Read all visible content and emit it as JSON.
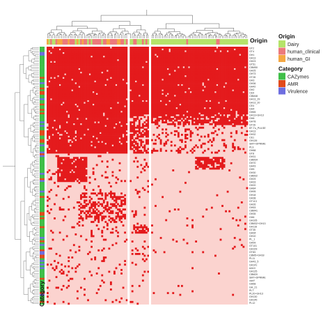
{
  "chart_data": {
    "type": "heatmap",
    "description_note_free": true,
    "annotation_top_label": "Origin",
    "annotation_side_label": "Category",
    "legend_placement": "right",
    "legends": [
      {
        "title": "Origin",
        "entries": [
          {
            "label": "Dairy",
            "color": "#b5e36a"
          },
          {
            "label": "human_clinical",
            "color": "#ec7a7c"
          },
          {
            "label": "human_GI",
            "color": "#f5a843"
          }
        ]
      },
      {
        "title": "Category",
        "entries": [
          {
            "label": "CAZymes",
            "color": "#3fbf48"
          },
          {
            "label": "AMR",
            "color": "#e24a1c"
          },
          {
            "label": "Virulence",
            "color": "#6e6ee0"
          }
        ]
      }
    ],
    "value_colors": {
      "present": "#e41a1c",
      "absent": "#fbd3cf"
    },
    "column_gaps_after": [
      46,
      57
    ],
    "n_columns": 112,
    "n_rows": 145,
    "row_labels_visible": [
      "GT2",
      "GT4",
      "GH1",
      "GH13",
      "GH23",
      "GT51",
      "CBM50",
      "GH25",
      "GH73",
      "GT28",
      "GH3",
      "GH36",
      "GH42",
      "GH2",
      "CE9",
      "CBM48",
      "GH13_29",
      "GH13_20",
      "CE4",
      "GH4",
      "GH65",
      "GH13+GH13",
      "GH8",
      "GH78",
      "GT26",
      "EF-Tu_PULSE",
      "GH13",
      "GH32",
      "CE1",
      "GH126",
      "SMT+DPRIME",
      "PL9",
      "GH88",
      "GT8",
      "GH31",
      "CBM34",
      "GH70",
      "GH43",
      "GH5",
      "GH30",
      "CBM32",
      "GH29",
      "GH33",
      "GH20",
      "GH84",
      "GH95",
      "GH18",
      "GH38",
      "GT113",
      "GH26",
      "GH53",
      "CBM41",
      "GH35",
      "GH6",
      "GH105",
      "CBM32+GH13",
      "GH116",
      "GT35",
      "GH94",
      "GH10",
      "PL_1",
      "GH99",
      "GT101",
      "GH109",
      "GT83",
      "CBM5+GH18",
      "PL11",
      "GH43_5",
      "GH141",
      "AA10",
      "GH125",
      "CBM20",
      "SMT+DPRIME",
      "vanY",
      "GH68",
      "GH_21",
      "PL7",
      "PL20+GH13",
      "GH130",
      "GH145",
      "PL12"
    ]
  }
}
